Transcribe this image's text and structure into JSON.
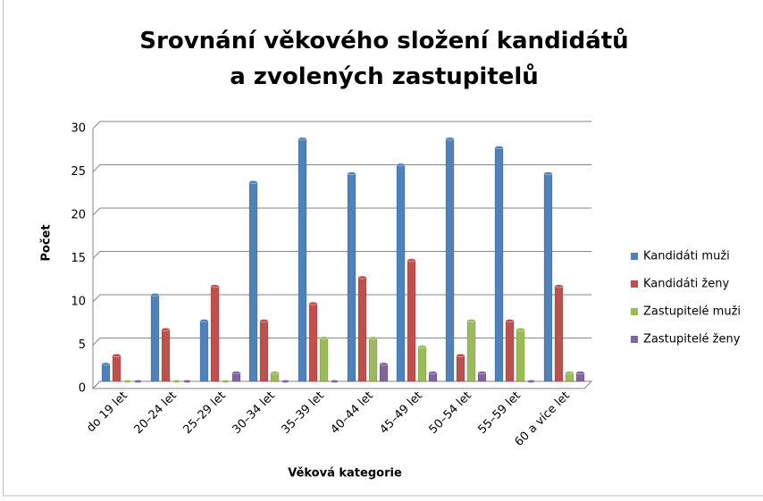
{
  "chart_data": {
    "type": "bar",
    "title": "Srovnání věkového složení kandidátů a zvolených zastupitelů",
    "x_label": "Věková kategorie",
    "y_label": "Počet",
    "categories": [
      "do 19 let",
      "20–24 let",
      "25–29 let",
      "30–34 let",
      "35–39 let",
      "40–44 let",
      "45–49 let",
      "50–54 let",
      "55–59 let",
      "60 a více let"
    ],
    "series": [
      {
        "name": "Kandidáti muži",
        "color": "#4f81bd",
        "values": [
          2,
          10,
          7,
          23,
          28,
          24,
          25,
          28,
          27,
          24
        ]
      },
      {
        "name": "Kandidáti ženy",
        "color": "#c0504d",
        "values": [
          3,
          6,
          11,
          7,
          9,
          12,
          14,
          3,
          7,
          11
        ]
      },
      {
        "name": "Zastupitelé muži",
        "color": "#9bbb59",
        "values": [
          0,
          0,
          0,
          1,
          5,
          5,
          4,
          7,
          6,
          1
        ]
      },
      {
        "name": "Zastupitelé ženy",
        "color": "#8064a2",
        "values": [
          0,
          0,
          1,
          0,
          0,
          2,
          1,
          1,
          0,
          1
        ]
      }
    ],
    "ylim": [
      0,
      30
    ],
    "yticks": [
      0,
      5,
      10,
      15,
      20,
      25,
      30
    ],
    "grid": true,
    "legend": "right"
  }
}
